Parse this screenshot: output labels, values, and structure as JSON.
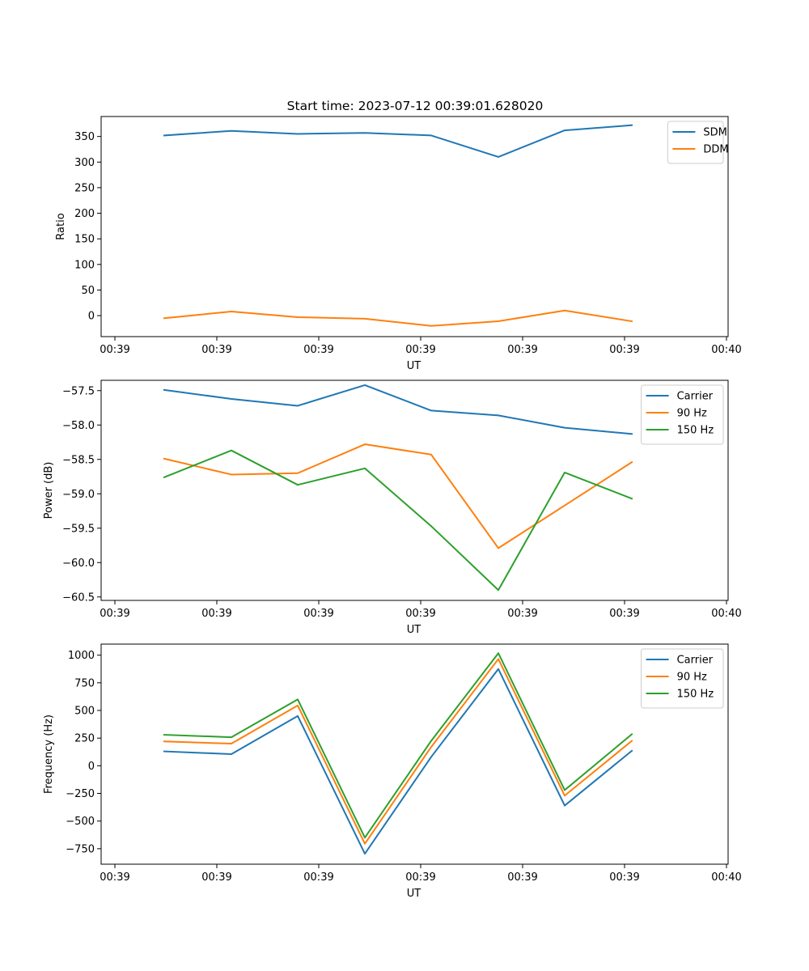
{
  "figure": {
    "title": "Start time: 2023-07-12 00:39:01.628020"
  },
  "colors": {
    "blue": "#1f77b4",
    "orange": "#ff7f0e",
    "green": "#2ca02c"
  },
  "chart_data": [
    {
      "type": "line",
      "title": "Start time: 2023-07-12 00:39:01.628020",
      "xlabel": "UT",
      "ylabel": "Ratio",
      "x_tick_labels": [
        "00:39",
        "00:39",
        "00:39",
        "00:39",
        "00:39",
        "00:39",
        "00:39",
        "00:40"
      ],
      "ylim": [
        -41,
        389
      ],
      "y_ticks": [
        0,
        50,
        100,
        150,
        200,
        250,
        300,
        350
      ],
      "legend_position": "top-right",
      "series": [
        {
          "name": "SDM",
          "color": "#1f77b4",
          "values": [
            352,
            361,
            355,
            357,
            352,
            310,
            362,
            372
          ]
        },
        {
          "name": "DDM",
          "color": "#ff7f0e",
          "values": [
            -5,
            8,
            -3,
            -6,
            -20,
            -11,
            10,
            -11
          ]
        }
      ]
    },
    {
      "type": "line",
      "xlabel": "UT",
      "ylabel": "Power (dB)",
      "x_tick_labels": [
        "00:39",
        "00:39",
        "00:39",
        "00:39",
        "00:39",
        "00:39",
        "00:39",
        "00:40"
      ],
      "ylim": [
        -60.55,
        -57.35
      ],
      "y_ticks": [
        -57.5,
        -58.0,
        -58.5,
        -59.0,
        -59.5,
        -60.0,
        -60.5
      ],
      "y_tick_labels": [
        "−57.5",
        "−58.0",
        "−58.5",
        "−59.0",
        "−59.5",
        "−60.0",
        "−60.5"
      ],
      "legend_position": "top-right",
      "series": [
        {
          "name": "Carrier",
          "color": "#1f77b4",
          "values": [
            -57.49,
            -57.62,
            -57.72,
            -57.42,
            -57.79,
            -57.86,
            -58.04,
            -58.13
          ]
        },
        {
          "name": "90 Hz",
          "color": "#ff7f0e",
          "values": [
            -58.49,
            -58.72,
            -58.7,
            -58.28,
            -58.43,
            -59.79,
            -59.17,
            -58.54
          ]
        },
        {
          "name": "150 Hz",
          "color": "#2ca02c",
          "values": [
            -58.76,
            -58.37,
            -58.87,
            -58.63,
            -59.47,
            -60.4,
            -58.69,
            -59.07
          ]
        }
      ]
    },
    {
      "type": "line",
      "xlabel": "UT",
      "ylabel": "Frequency (Hz)",
      "x_tick_labels": [
        "00:39",
        "00:39",
        "00:39",
        "00:39",
        "00:39",
        "00:39",
        "00:39",
        "00:40"
      ],
      "ylim": [
        -890,
        1100
      ],
      "y_ticks": [
        1000,
        750,
        500,
        250,
        0,
        -250,
        -500,
        -750
      ],
      "y_tick_labels": [
        "1000",
        "750",
        "500",
        "250",
        "0",
        "−250",
        "−500",
        "−750"
      ],
      "legend_position": "top-right",
      "series": [
        {
          "name": "Carrier",
          "color": "#1f77b4",
          "values": [
            130,
            105,
            450,
            -795,
            80,
            875,
            -360,
            135
          ]
        },
        {
          "name": "90 Hz",
          "color": "#ff7f0e",
          "values": [
            220,
            200,
            545,
            -705,
            170,
            965,
            -270,
            225
          ]
        },
        {
          "name": "150 Hz",
          "color": "#2ca02c",
          "values": [
            280,
            258,
            600,
            -650,
            225,
            1018,
            -220,
            285
          ]
        }
      ]
    }
  ]
}
